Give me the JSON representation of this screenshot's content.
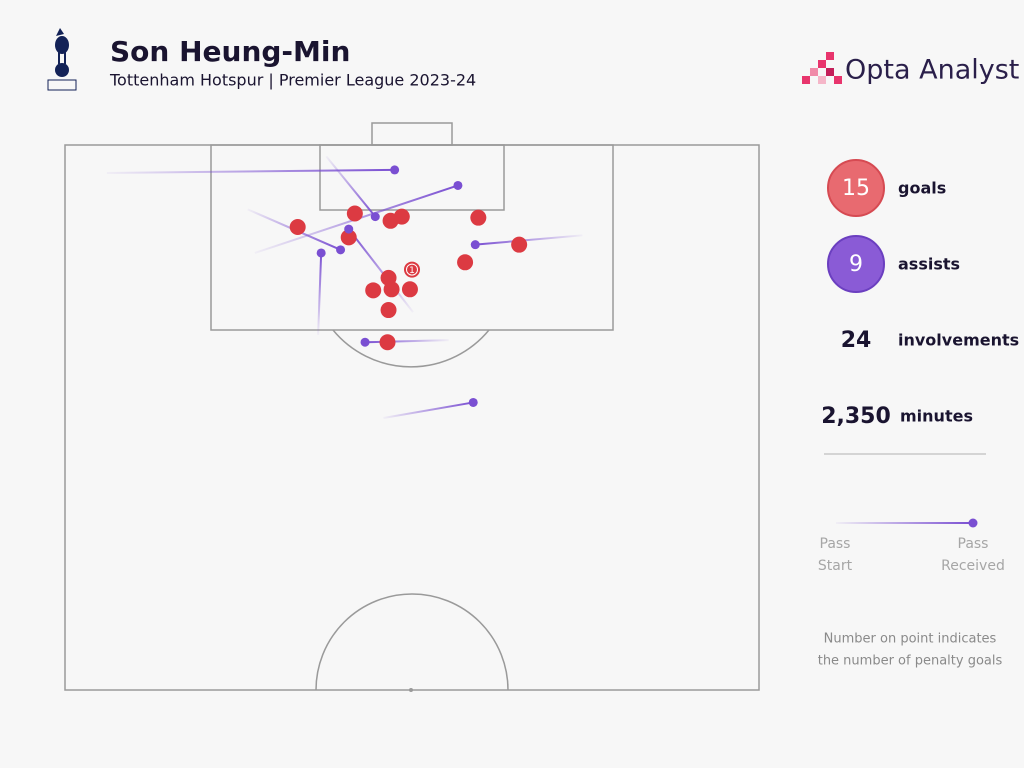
{
  "header": {
    "title": "Son Heung-Min",
    "subtitle": "Tottenham Hotspur | Premier League 2023-24",
    "brand": "Opta Analyst"
  },
  "chart_data": {
    "type": "shotmap",
    "xlim": [
      0,
      68
    ],
    "ylim": [
      0,
      52.5
    ],
    "goals": {
      "x": [
        22.8,
        28.4,
        31.9,
        33.0,
        40.5,
        27.8,
        44.5,
        39.2,
        34.0,
        31.7,
        30.2,
        32.0,
        33.8,
        31.7,
        31.6
      ],
      "y": [
        7.9,
        6.6,
        7.3,
        6.9,
        7.0,
        8.9,
        9.6,
        11.3,
        12.0,
        12.8,
        14.0,
        13.9,
        13.9,
        15.9,
        19.0
      ],
      "labels": [
        null,
        null,
        null,
        null,
        null,
        null,
        null,
        null,
        1,
        null,
        null,
        null,
        null,
        null,
        null
      ],
      "color": "#dc3a42"
    },
    "assists": {
      "start_x": [
        4.1,
        18.6,
        25.6,
        17.9,
        34.1,
        24.8,
        50.7,
        37.6,
        31.2
      ],
      "start_y": [
        2.7,
        10.4,
        1.1,
        6.2,
        16.1,
        18.3,
        8.7,
        18.8,
        26.3
      ],
      "end_x": [
        32.3,
        38.5,
        30.4,
        27.0,
        27.8,
        25.1,
        40.2,
        29.4,
        40.0
      ],
      "end_y": [
        2.4,
        3.9,
        6.9,
        10.1,
        8.1,
        10.4,
        9.6,
        19.0,
        24.8
      ],
      "color": "#7a4fd2"
    }
  },
  "stats": [
    {
      "value": 15,
      "label": "goals"
    },
    {
      "value": 9,
      "label": "assists"
    },
    {
      "value": 24,
      "label": "involvements"
    },
    {
      "value": {
        "value": 2350,
        "label": "2,350"
      },
      "label": "minutes"
    }
  ],
  "legend": {
    "start": [
      "Pass",
      "Start"
    ],
    "end": [
      "Pass",
      "Received"
    ]
  },
  "note": [
    "Number on point indicates",
    "the number of penalty goals"
  ]
}
